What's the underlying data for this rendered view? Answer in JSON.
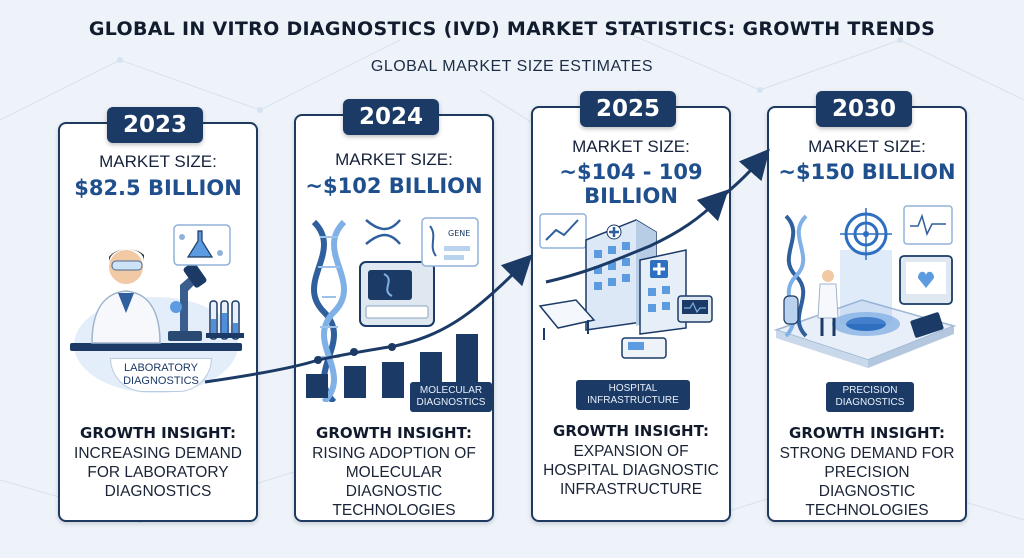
{
  "title": "GLOBAL IN VITRO DIAGNOSTICS (IVD) MARKET STATISTICS: GROWTH TRENDS",
  "subtitle": "GLOBAL MARKET SIZE ESTIMATES",
  "market_size_label": "MARKET SIZE:",
  "growth_insight_label": "GROWTH INSIGHT:",
  "cards": [
    {
      "year": "2023",
      "value": "$82.5 BILLION",
      "badge": "LABORATORY DIAGNOSTICS",
      "insight": "INCREASING DEMAND FOR LABORATORY DIAGNOSTICS",
      "icon": "laboratory-scientist-icon"
    },
    {
      "year": "2024",
      "value": "~$102 BILLION",
      "badge": "MOLECULAR DIAGNOSTICS",
      "insight": "RISING ADOPTION OF MOLECULAR DIAGNOSTIC TECHNOLOGIES",
      "icon": "dna-analyzer-icon",
      "gene_label": "GENE"
    },
    {
      "year": "2025",
      "value": "~$104 - 109 BILLION",
      "badge": "HOSPITAL INFRASTRUCTURE",
      "insight": "EXPANSION OF HOSPITAL DIAGNOSTIC INFRASTRUCTURE",
      "icon": "hospital-building-icon"
    },
    {
      "year": "2030",
      "value": "~$150 BILLION",
      "badge": "PRECISION DIAGNOSTICS",
      "insight": "STRONG DEMAND FOR PRECISION DIAGNOSTIC TECHNOLOGIES",
      "icon": "precision-hologram-icon"
    }
  ],
  "colors": {
    "navy": "#1b3a66",
    "accent_blue": "#1f4f8c",
    "light_blue": "#5d9be0",
    "background": "#eef3f9"
  }
}
